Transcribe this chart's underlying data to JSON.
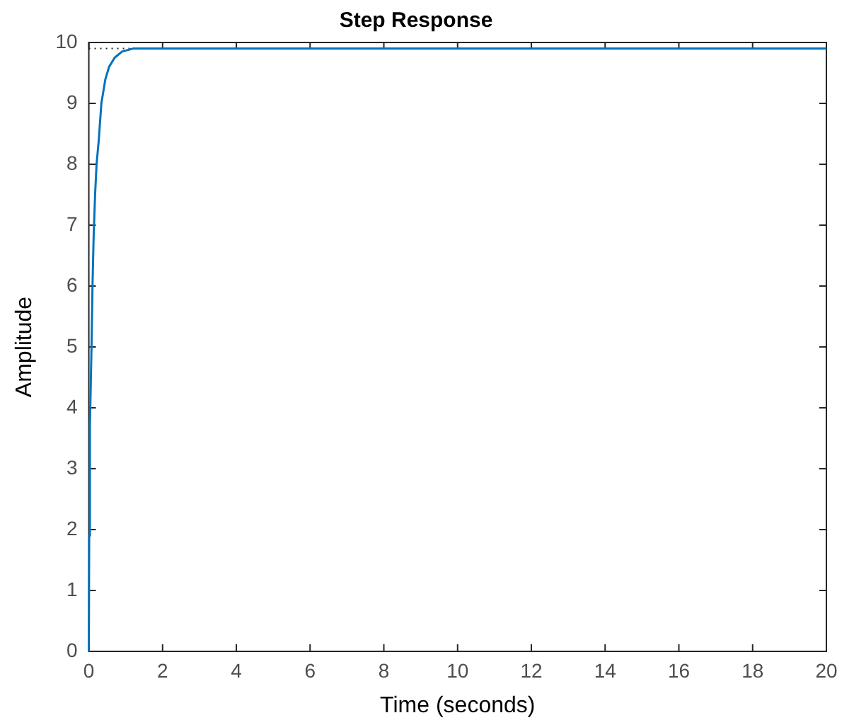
{
  "chart_data": {
    "type": "line",
    "title": "Step Response",
    "xlabel": "Time (seconds)",
    "ylabel": "Amplitude",
    "x": [
      0,
      0.01,
      0.03,
      0.07,
      0.1,
      0.13,
      0.17,
      0.21,
      0.27,
      0.34,
      0.45,
      0.55,
      0.7,
      0.9,
      1.2,
      20
    ],
    "series": [
      {
        "color": "#0072bd",
        "values": [
          0,
          1.9,
          3.7,
          4.9,
          6.0,
          6.8,
          7.5,
          8.0,
          8.4,
          9.0,
          9.4,
          9.6,
          9.75,
          9.85,
          9.9,
          9.9
        ]
      }
    ],
    "xlim": [
      0,
      20
    ],
    "xticks": [
      0,
      2,
      4,
      6,
      8,
      10,
      12,
      14,
      16,
      18,
      20
    ],
    "ylim": [
      0,
      10
    ],
    "yticks": [
      0,
      1,
      2,
      3,
      4,
      5,
      6,
      7,
      8,
      9,
      10
    ],
    "ref_lines": [
      {
        "axis": "y",
        "value": 9.9,
        "color": "#262626",
        "line_style": "dotted"
      }
    ],
    "grid": false,
    "legend": false,
    "marker": "none",
    "line_style": "solid"
  }
}
